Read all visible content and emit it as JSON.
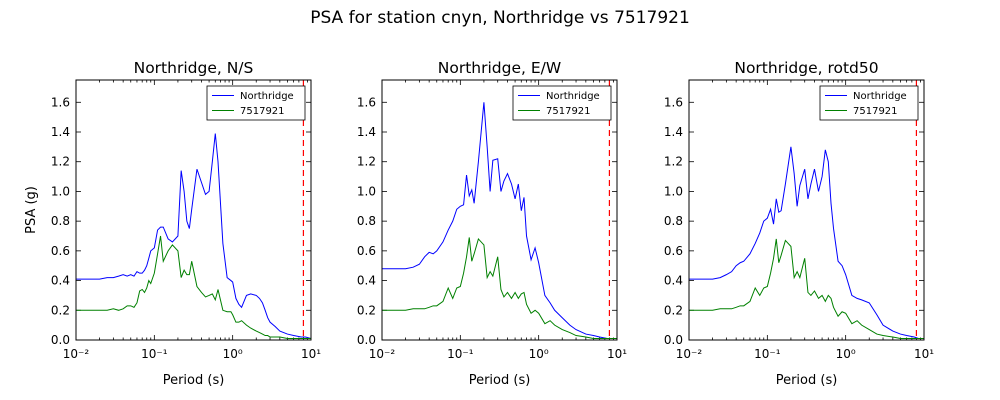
{
  "suptitle": "PSA for station cnyn, Northridge vs 7517921",
  "colors": {
    "Northridge": "#0000ff",
    "7517921": "#008000",
    "cutoff": "#ff0000"
  },
  "chart_data": [
    {
      "type": "line",
      "title": "Northridge, N/S",
      "xlabel": "Period (s)",
      "ylabel": "PSA (g)",
      "xscale": "log",
      "xlim": [
        0.01,
        10
      ],
      "ylim": [
        0,
        1.75
      ],
      "xticks": [
        0.01,
        0.1,
        1,
        10
      ],
      "yticks": [
        0.0,
        0.2,
        0.4,
        0.6,
        0.8,
        1.0,
        1.2,
        1.4,
        1.6
      ],
      "legend_position": "top-right",
      "vline": {
        "x": 8.0,
        "style": "dashed"
      },
      "series": [
        {
          "name": "Northridge",
          "x": [
            0.01,
            0.015,
            0.02,
            0.025,
            0.03,
            0.035,
            0.04,
            0.045,
            0.05,
            0.055,
            0.06,
            0.065,
            0.07,
            0.075,
            0.08,
            0.085,
            0.09,
            0.1,
            0.11,
            0.12,
            0.13,
            0.15,
            0.17,
            0.2,
            0.22,
            0.24,
            0.26,
            0.28,
            0.3,
            0.35,
            0.4,
            0.45,
            0.5,
            0.55,
            0.6,
            0.65,
            0.75,
            0.85,
            0.95,
            1.0,
            1.1,
            1.2,
            1.3,
            1.5,
            1.7,
            2.0,
            2.2,
            2.4,
            2.6,
            2.8,
            3.0,
            3.5,
            4.0,
            5.0,
            6.0,
            7.5,
            8.5,
            10.0
          ],
          "y": [
            0.41,
            0.41,
            0.41,
            0.42,
            0.42,
            0.43,
            0.44,
            0.43,
            0.44,
            0.43,
            0.46,
            0.45,
            0.45,
            0.47,
            0.5,
            0.55,
            0.6,
            0.62,
            0.74,
            0.76,
            0.76,
            0.68,
            0.66,
            0.7,
            1.14,
            1.0,
            0.8,
            0.75,
            0.88,
            1.15,
            1.06,
            0.98,
            1.0,
            1.2,
            1.39,
            1.2,
            0.65,
            0.42,
            0.4,
            0.39,
            0.28,
            0.24,
            0.22,
            0.3,
            0.31,
            0.3,
            0.28,
            0.25,
            0.2,
            0.15,
            0.12,
            0.09,
            0.06,
            0.04,
            0.03,
            0.02,
            0.02,
            0.01
          ]
        },
        {
          "name": "7517921",
          "x": [
            0.01,
            0.015,
            0.02,
            0.025,
            0.03,
            0.035,
            0.04,
            0.045,
            0.05,
            0.055,
            0.06,
            0.065,
            0.07,
            0.075,
            0.08,
            0.085,
            0.09,
            0.1,
            0.11,
            0.12,
            0.13,
            0.15,
            0.17,
            0.2,
            0.22,
            0.24,
            0.26,
            0.28,
            0.3,
            0.35,
            0.4,
            0.45,
            0.5,
            0.55,
            0.6,
            0.65,
            0.75,
            0.85,
            0.95,
            1.0,
            1.1,
            1.2,
            1.3,
            1.5,
            1.7,
            2.0,
            2.2,
            2.4,
            2.6,
            2.8,
            3.0,
            3.5,
            4.0,
            5.0,
            6.0,
            7.5,
            8.5,
            10.0
          ],
          "y": [
            0.2,
            0.2,
            0.2,
            0.2,
            0.21,
            0.2,
            0.21,
            0.23,
            0.23,
            0.22,
            0.25,
            0.33,
            0.34,
            0.32,
            0.35,
            0.4,
            0.38,
            0.45,
            0.58,
            0.7,
            0.53,
            0.6,
            0.64,
            0.6,
            0.42,
            0.47,
            0.44,
            0.44,
            0.53,
            0.36,
            0.32,
            0.29,
            0.3,
            0.31,
            0.27,
            0.34,
            0.2,
            0.19,
            0.19,
            0.17,
            0.12,
            0.12,
            0.13,
            0.1,
            0.08,
            0.06,
            0.05,
            0.04,
            0.03,
            0.03,
            0.02,
            0.02,
            0.02,
            0.01,
            0.01,
            0.01,
            0.01,
            0.01
          ]
        }
      ]
    },
    {
      "type": "line",
      "title": "Northridge, E/W",
      "xlabel": "Period (s)",
      "ylabel": "",
      "xscale": "log",
      "xlim": [
        0.01,
        10
      ],
      "ylim": [
        0,
        1.75
      ],
      "xticks": [
        0.01,
        0.1,
        1,
        10
      ],
      "yticks": [
        0.0,
        0.2,
        0.4,
        0.6,
        0.8,
        1.0,
        1.2,
        1.4,
        1.6
      ],
      "legend_position": "top-right",
      "vline": {
        "x": 8.0,
        "style": "dashed"
      },
      "series": [
        {
          "name": "Northridge",
          "x": [
            0.01,
            0.015,
            0.02,
            0.025,
            0.03,
            0.035,
            0.04,
            0.045,
            0.05,
            0.06,
            0.07,
            0.08,
            0.09,
            0.1,
            0.11,
            0.12,
            0.13,
            0.14,
            0.15,
            0.17,
            0.2,
            0.22,
            0.24,
            0.26,
            0.3,
            0.33,
            0.36,
            0.4,
            0.45,
            0.5,
            0.55,
            0.6,
            0.65,
            0.7,
            0.8,
            0.9,
            1.0,
            1.2,
            1.4,
            1.6,
            2.0,
            2.5,
            3.0,
            4.0,
            5.0,
            6.0,
            7.5,
            8.5,
            10.0
          ],
          "y": [
            0.48,
            0.48,
            0.48,
            0.49,
            0.51,
            0.56,
            0.59,
            0.58,
            0.6,
            0.66,
            0.74,
            0.8,
            0.88,
            0.9,
            0.91,
            1.11,
            0.97,
            1.01,
            0.92,
            1.2,
            1.6,
            1.3,
            1.0,
            1.21,
            1.22,
            1.0,
            1.07,
            1.12,
            1.05,
            0.95,
            1.05,
            0.87,
            0.96,
            0.7,
            0.54,
            0.62,
            0.52,
            0.3,
            0.25,
            0.2,
            0.15,
            0.1,
            0.07,
            0.04,
            0.03,
            0.02,
            0.01,
            0.01,
            0.01
          ]
        },
        {
          "name": "7517921",
          "x": [
            0.01,
            0.015,
            0.02,
            0.025,
            0.03,
            0.035,
            0.04,
            0.045,
            0.05,
            0.06,
            0.07,
            0.08,
            0.09,
            0.1,
            0.11,
            0.12,
            0.13,
            0.14,
            0.15,
            0.17,
            0.2,
            0.22,
            0.24,
            0.26,
            0.3,
            0.33,
            0.36,
            0.4,
            0.45,
            0.5,
            0.55,
            0.6,
            0.65,
            0.7,
            0.8,
            0.9,
            1.0,
            1.2,
            1.4,
            1.6,
            2.0,
            2.5,
            3.0,
            4.0,
            5.0,
            6.0,
            7.5,
            8.5,
            10.0
          ],
          "y": [
            0.2,
            0.2,
            0.2,
            0.21,
            0.21,
            0.21,
            0.22,
            0.23,
            0.23,
            0.26,
            0.35,
            0.28,
            0.35,
            0.36,
            0.45,
            0.56,
            0.69,
            0.53,
            0.58,
            0.68,
            0.64,
            0.42,
            0.46,
            0.43,
            0.56,
            0.34,
            0.29,
            0.32,
            0.28,
            0.32,
            0.28,
            0.31,
            0.32,
            0.24,
            0.18,
            0.2,
            0.18,
            0.11,
            0.13,
            0.1,
            0.07,
            0.05,
            0.03,
            0.02,
            0.01,
            0.01,
            0.01,
            0.01,
            0.01
          ]
        }
      ]
    },
    {
      "type": "line",
      "title": "Northridge, rotd50",
      "xlabel": "Period (s)",
      "ylabel": "",
      "xscale": "log",
      "xlim": [
        0.01,
        10
      ],
      "ylim": [
        0,
        1.75
      ],
      "xticks": [
        0.01,
        0.1,
        1,
        10
      ],
      "yticks": [
        0.0,
        0.2,
        0.4,
        0.6,
        0.8,
        1.0,
        1.2,
        1.4,
        1.6
      ],
      "legend_position": "top-right",
      "vline": {
        "x": 8.0,
        "style": "dashed"
      },
      "series": [
        {
          "name": "Northridge",
          "x": [
            0.01,
            0.015,
            0.02,
            0.025,
            0.03,
            0.035,
            0.04,
            0.045,
            0.05,
            0.06,
            0.07,
            0.08,
            0.09,
            0.1,
            0.11,
            0.12,
            0.13,
            0.14,
            0.15,
            0.17,
            0.2,
            0.22,
            0.24,
            0.26,
            0.3,
            0.33,
            0.36,
            0.4,
            0.45,
            0.5,
            0.55,
            0.6,
            0.65,
            0.7,
            0.8,
            0.9,
            1.0,
            1.2,
            1.4,
            1.6,
            2.0,
            2.5,
            3.0,
            4.0,
            5.0,
            6.0,
            7.5,
            8.5,
            10.0
          ],
          "y": [
            0.41,
            0.41,
            0.41,
            0.42,
            0.44,
            0.46,
            0.5,
            0.52,
            0.53,
            0.58,
            0.65,
            0.72,
            0.8,
            0.82,
            0.88,
            0.78,
            0.95,
            0.86,
            0.87,
            1.05,
            1.3,
            1.12,
            0.9,
            1.04,
            1.15,
            0.95,
            1.05,
            1.15,
            1.0,
            1.1,
            1.28,
            1.2,
            0.92,
            0.75,
            0.53,
            0.5,
            0.44,
            0.3,
            0.28,
            0.27,
            0.25,
            0.17,
            0.1,
            0.06,
            0.04,
            0.03,
            0.02,
            0.01,
            0.01
          ]
        },
        {
          "name": "7517921",
          "x": [
            0.01,
            0.015,
            0.02,
            0.025,
            0.03,
            0.035,
            0.04,
            0.045,
            0.05,
            0.06,
            0.07,
            0.08,
            0.09,
            0.1,
            0.11,
            0.12,
            0.13,
            0.14,
            0.15,
            0.17,
            0.2,
            0.22,
            0.24,
            0.26,
            0.3,
            0.33,
            0.36,
            0.4,
            0.45,
            0.5,
            0.55,
            0.6,
            0.65,
            0.7,
            0.8,
            0.9,
            1.0,
            1.2,
            1.4,
            1.6,
            2.0,
            2.5,
            3.0,
            4.0,
            5.0,
            6.0,
            7.5,
            8.5,
            10.0
          ],
          "y": [
            0.2,
            0.2,
            0.2,
            0.21,
            0.21,
            0.21,
            0.22,
            0.23,
            0.23,
            0.26,
            0.35,
            0.3,
            0.35,
            0.36,
            0.45,
            0.55,
            0.68,
            0.52,
            0.57,
            0.67,
            0.63,
            0.42,
            0.46,
            0.42,
            0.55,
            0.32,
            0.3,
            0.33,
            0.28,
            0.3,
            0.26,
            0.3,
            0.28,
            0.22,
            0.16,
            0.19,
            0.18,
            0.11,
            0.13,
            0.1,
            0.07,
            0.04,
            0.03,
            0.02,
            0.01,
            0.01,
            0.01,
            0.01,
            0.01
          ]
        }
      ]
    }
  ]
}
